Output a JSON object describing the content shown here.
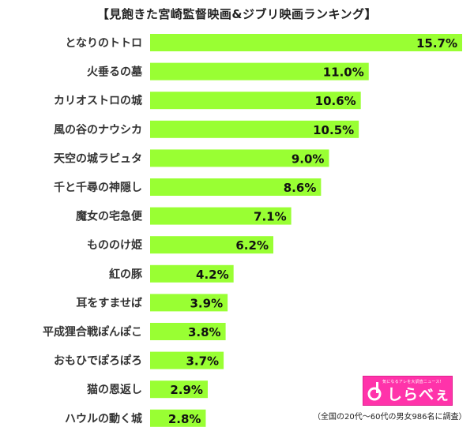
{
  "chart_data": {
    "type": "bar",
    "orientation": "horizontal",
    "title": "【見飽きた宮崎監督映画&ジブリ映画ランキング】",
    "categories": [
      "となりのトトロ",
      "火垂るの墓",
      "カリオストロの城",
      "風の谷のナウシカ",
      "天空の城ラピュタ",
      "千と千尋の神隠し",
      "魔女の宅急便",
      "もののけ姫",
      "紅の豚",
      "耳をすませば",
      "平成狸合戦ぽんぽこ",
      "おもひでぽろぽろ",
      "猫の恩返し",
      "ハウルの動く城"
    ],
    "values": [
      15.7,
      11.0,
      10.6,
      10.5,
      9.0,
      8.6,
      7.1,
      6.2,
      4.2,
      3.9,
      3.8,
      3.7,
      2.9,
      2.8
    ],
    "value_labels": [
      "15.7%",
      "11.0%",
      "10.6%",
      "10.5%",
      "9.0%",
      "8.6%",
      "7.1%",
      "6.2%",
      "4.2%",
      "3.9%",
      "3.8%",
      "3.7%",
      "2.9%",
      "2.8%"
    ],
    "bar_color": "#99ff33",
    "xlim": [
      0,
      15.7
    ],
    "grid": false,
    "legend": "none"
  },
  "logo": {
    "tagline": "気になるアレを大調査ニュース!",
    "name": "しらべぇ",
    "color": "#ff33aa"
  },
  "footnote": "（全国の20代～60代の男女986名に調査）"
}
